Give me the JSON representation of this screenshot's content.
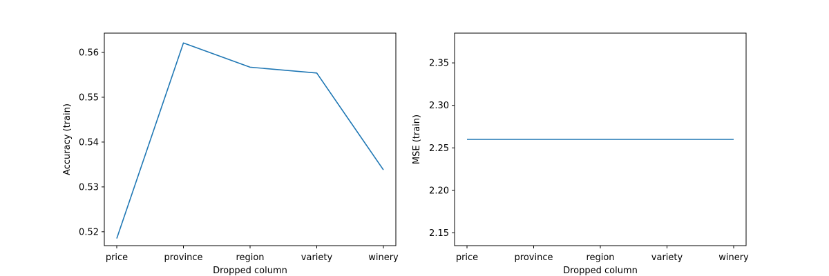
{
  "chart_data": [
    {
      "type": "line",
      "title": "",
      "xlabel": "Dropped column",
      "ylabel": "Accuracy (train)",
      "categories": [
        "price",
        "province",
        "region",
        "variety",
        "winery"
      ],
      "series": [
        {
          "values": [
            0.5185,
            0.5621,
            0.5567,
            0.5554,
            0.5338
          ],
          "color": "#1f77b4"
        }
      ],
      "ylim": [
        0.5169,
        0.5643
      ],
      "yticks": [
        0.52,
        0.53,
        0.54,
        0.55,
        0.56
      ],
      "yticklabels": [
        "0.52",
        "0.53",
        "0.54",
        "0.55",
        "0.56"
      ],
      "grid": false,
      "legend": "none"
    },
    {
      "type": "line",
      "title": "",
      "xlabel": "Dropped column",
      "ylabel": "MSE (train)",
      "categories": [
        "price",
        "province",
        "region",
        "variety",
        "winery"
      ],
      "series": [
        {
          "values": [
            2.26,
            2.26,
            2.26,
            2.26,
            2.26
          ],
          "color": "#1f77b4"
        }
      ],
      "ylim": [
        2.135,
        2.385
      ],
      "yticks": [
        2.15,
        2.2,
        2.25,
        2.3,
        2.35
      ],
      "yticklabels": [
        "2.15",
        "2.20",
        "2.25",
        "2.30",
        "2.35"
      ],
      "grid": false,
      "legend": "none"
    }
  ]
}
